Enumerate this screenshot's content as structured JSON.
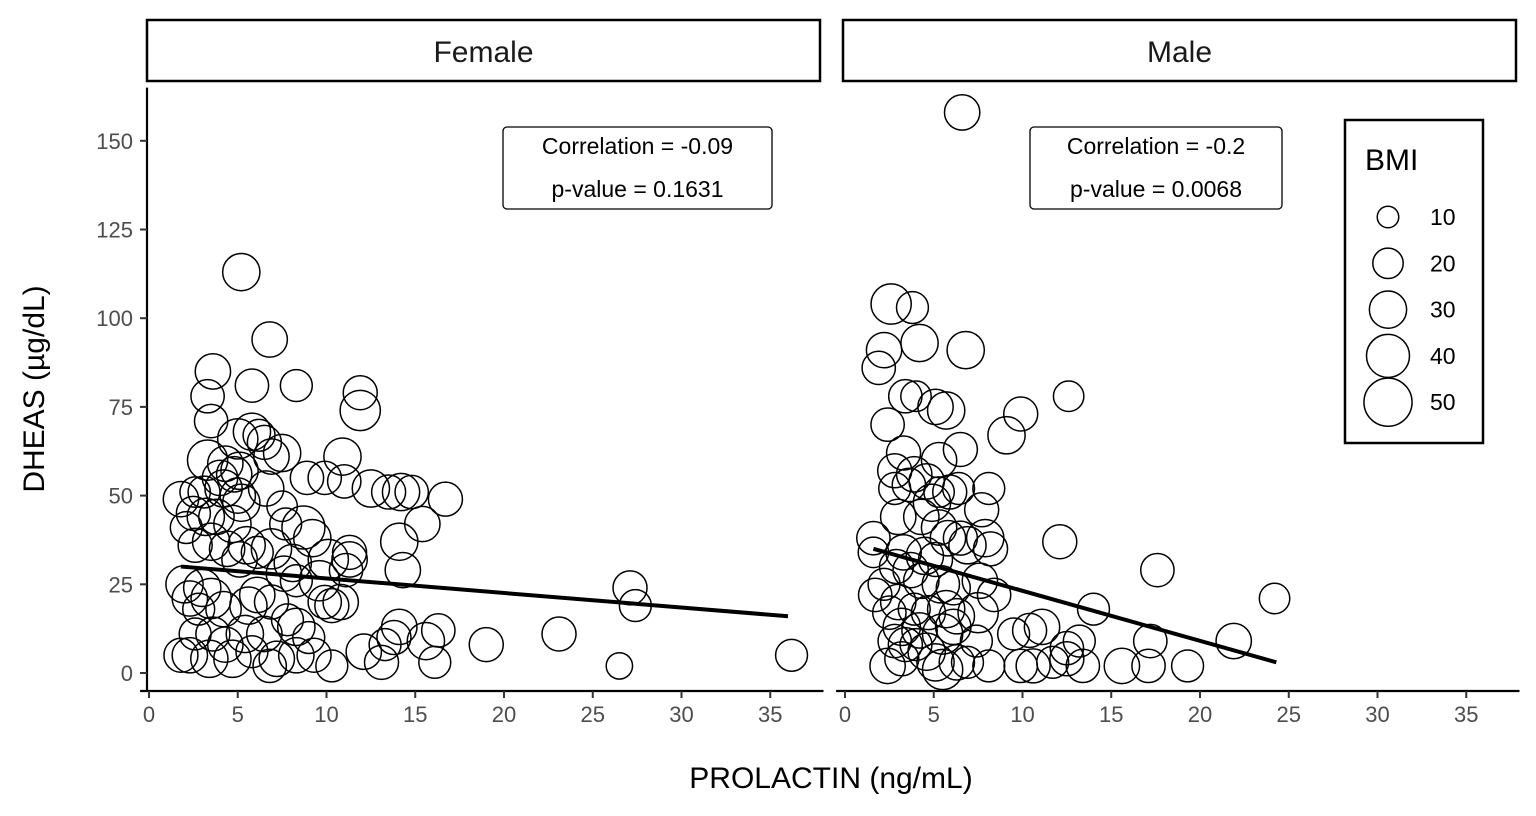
{
  "chart_data": {
    "type": "scatter",
    "xlabel": "PROLACTIN (ng/mL)",
    "ylabel": "DHEAS (µg/dL)",
    "xlim": [
      -0.5,
      38
    ],
    "ylim": [
      -5,
      165
    ],
    "x_ticks": [
      0,
      5,
      10,
      15,
      20,
      25,
      30,
      35
    ],
    "y_ticks": [
      0,
      25,
      50,
      75,
      100,
      125,
      150
    ],
    "grid": false,
    "size_variable": "BMI",
    "legend": {
      "title": "BMI",
      "position": "right",
      "entries": [
        10,
        20,
        30,
        40,
        50
      ]
    },
    "panels": [
      {
        "name": "Female",
        "annotation": [
          "Correlation = -0.09",
          "p-value = 0.1631"
        ],
        "fit_line": [
          [
            1.8,
            30
          ],
          [
            36,
            16
          ]
        ],
        "points": [
          [
            5.2,
            113,
            30
          ],
          [
            6.8,
            94,
            27
          ],
          [
            3.6,
            85,
            27
          ],
          [
            5.8,
            81,
            24
          ],
          [
            8.3,
            81,
            22
          ],
          [
            3.3,
            78,
            24
          ],
          [
            11.9,
            79,
            25
          ],
          [
            11.9,
            74,
            35
          ],
          [
            3.5,
            71,
            24
          ],
          [
            5.8,
            68,
            30
          ],
          [
            6.2,
            67,
            22
          ],
          [
            6.5,
            65,
            25
          ],
          [
            5,
            66,
            35
          ],
          [
            6.9,
            61,
            27
          ],
          [
            7.5,
            62,
            30
          ],
          [
            3.3,
            60,
            35
          ],
          [
            4.3,
            59,
            27
          ],
          [
            4.8,
            56,
            27
          ],
          [
            5.1,
            57,
            30
          ],
          [
            4,
            55,
            27
          ],
          [
            8.9,
            55,
            24
          ],
          [
            9.9,
            55,
            24
          ],
          [
            11,
            54,
            24
          ],
          [
            10.9,
            61,
            30
          ],
          [
            12.5,
            52,
            30
          ],
          [
            13.5,
            51,
            25
          ],
          [
            14.2,
            51,
            30
          ],
          [
            14.8,
            51,
            24
          ],
          [
            16.7,
            49,
            25
          ],
          [
            15.4,
            42,
            27
          ],
          [
            2.6,
            51,
            20
          ],
          [
            3.1,
            51,
            22
          ],
          [
            1.8,
            49,
            27
          ],
          [
            4.2,
            52,
            30
          ],
          [
            5,
            50,
            27
          ],
          [
            6.6,
            52,
            27
          ],
          [
            5.2,
            48,
            30
          ],
          [
            7.5,
            47,
            20
          ],
          [
            3.2,
            44,
            30
          ],
          [
            2.5,
            45,
            25
          ],
          [
            3.8,
            44,
            27
          ],
          [
            2.1,
            41,
            22
          ],
          [
            4.7,
            42,
            30
          ],
          [
            7.7,
            42,
            22
          ],
          [
            8.7,
            41,
            40
          ],
          [
            9.2,
            38,
            30
          ],
          [
            10.1,
            32,
            35
          ],
          [
            11.3,
            34,
            25
          ],
          [
            11.3,
            32,
            27
          ],
          [
            11.1,
            29,
            24
          ],
          [
            14.1,
            37,
            30
          ],
          [
            14.3,
            29,
            27
          ],
          [
            2.6,
            36,
            25
          ],
          [
            3.5,
            37,
            30
          ],
          [
            4.4,
            35,
            27
          ],
          [
            5.5,
            36,
            30
          ],
          [
            6.9,
            35,
            35
          ],
          [
            8.1,
            31,
            30
          ],
          [
            6.1,
            34,
            22
          ],
          [
            5.1,
            32,
            27
          ],
          [
            2,
            25,
            30
          ],
          [
            2.3,
            21,
            27
          ],
          [
            3,
            24,
            30
          ],
          [
            3.5,
            21,
            35
          ],
          [
            2.8,
            18,
            22
          ],
          [
            4.2,
            18,
            27
          ],
          [
            5.6,
            19,
            30
          ],
          [
            6.1,
            22,
            27
          ],
          [
            6.9,
            20,
            25
          ],
          [
            7.6,
            28,
            27
          ],
          [
            8.3,
            26,
            22
          ],
          [
            9.6,
            26,
            35
          ],
          [
            9.9,
            20,
            24
          ],
          [
            10.3,
            19,
            25
          ],
          [
            10.8,
            20,
            27
          ],
          [
            7.8,
            15,
            22
          ],
          [
            8.3,
            13,
            30
          ],
          [
            9,
            10,
            22
          ],
          [
            6.5,
            11,
            27
          ],
          [
            5.4,
            11,
            30
          ],
          [
            4.3,
            8,
            27
          ],
          [
            3.6,
            11,
            25
          ],
          [
            2.6,
            11,
            22
          ],
          [
            2.3,
            5,
            27
          ],
          [
            1.8,
            5,
            25
          ],
          [
            3.4,
            4,
            30
          ],
          [
            4.7,
            4,
            30
          ],
          [
            6.8,
            2,
            24
          ],
          [
            5.8,
            6,
            22
          ],
          [
            7.2,
            4,
            27
          ],
          [
            8.3,
            5,
            27
          ],
          [
            9.3,
            5,
            25
          ],
          [
            10.3,
            2,
            22
          ],
          [
            12.1,
            6,
            27
          ],
          [
            13.1,
            3,
            25
          ],
          [
            13.3,
            8,
            22
          ],
          [
            13.8,
            10,
            25
          ],
          [
            14.1,
            13,
            27
          ],
          [
            15.6,
            9,
            30
          ],
          [
            16.1,
            3,
            22
          ],
          [
            16.3,
            12,
            24
          ],
          [
            19,
            8,
            25
          ],
          [
            23.1,
            11,
            25
          ],
          [
            26.5,
            2,
            15
          ],
          [
            27.1,
            24,
            25
          ],
          [
            27.4,
            19,
            22
          ],
          [
            36.2,
            5,
            22
          ]
        ]
      },
      {
        "name": "Male",
        "annotation": [
          "Correlation = -0.2",
          "p-value = 0.0068"
        ],
        "fit_line": [
          [
            1.6,
            35
          ],
          [
            24.3,
            3
          ]
        ],
        "points": [
          [
            6.6,
            158,
            27
          ],
          [
            2.6,
            104,
            35
          ],
          [
            3.8,
            103,
            22
          ],
          [
            2.2,
            91,
            27
          ],
          [
            4.2,
            93,
            30
          ],
          [
            6.8,
            91,
            30
          ],
          [
            1.9,
            86,
            24
          ],
          [
            3.4,
            78,
            24
          ],
          [
            4,
            78,
            20
          ],
          [
            5.1,
            75,
            27
          ],
          [
            5.7,
            74,
            30
          ],
          [
            9.9,
            73,
            25
          ],
          [
            12.6,
            78,
            20
          ],
          [
            2.4,
            70,
            24
          ],
          [
            9.1,
            67,
            30
          ],
          [
            6.5,
            63,
            25
          ],
          [
            3.3,
            62,
            25
          ],
          [
            2.8,
            57,
            25
          ],
          [
            3.9,
            56,
            27
          ],
          [
            4.6,
            54,
            27
          ],
          [
            5.3,
            60,
            27
          ],
          [
            3.6,
            53,
            24
          ],
          [
            2.8,
            52,
            22
          ],
          [
            5.3,
            51,
            20
          ],
          [
            5.9,
            51,
            25
          ],
          [
            6.4,
            52,
            22
          ],
          [
            8.1,
            52,
            22
          ],
          [
            7.7,
            46,
            25
          ],
          [
            4.9,
            48,
            30
          ],
          [
            4.3,
            44,
            27
          ],
          [
            3,
            44,
            27
          ],
          [
            1.6,
            38,
            24
          ],
          [
            5.3,
            41,
            27
          ],
          [
            5.8,
            38,
            27
          ],
          [
            6.5,
            38,
            25
          ],
          [
            7.9,
            38,
            30
          ],
          [
            6.9,
            36,
            30
          ],
          [
            8.2,
            35,
            25
          ],
          [
            1.6,
            34,
            20
          ],
          [
            3.3,
            34,
            27
          ],
          [
            4.5,
            33,
            30
          ],
          [
            5.1,
            32,
            25
          ],
          [
            12.1,
            37,
            25
          ],
          [
            2.9,
            30,
            25
          ],
          [
            3.7,
            29,
            27
          ],
          [
            4.3,
            26,
            27
          ],
          [
            5.4,
            25,
            30
          ],
          [
            6.1,
            24,
            25
          ],
          [
            7.6,
            26,
            27
          ],
          [
            8.4,
            22,
            24
          ],
          [
            2.2,
            25,
            22
          ],
          [
            1.7,
            22,
            24
          ],
          [
            3,
            20,
            27
          ],
          [
            3.9,
            18,
            22
          ],
          [
            4.7,
            17,
            25
          ],
          [
            5.7,
            18,
            30
          ],
          [
            6.3,
            16,
            27
          ],
          [
            7.5,
            17,
            35
          ],
          [
            2.5,
            17,
            24
          ],
          [
            3.2,
            13,
            30
          ],
          [
            4.2,
            12,
            27
          ],
          [
            5.5,
            11,
            35
          ],
          [
            6.1,
            13,
            27
          ],
          [
            7.4,
            9,
            22
          ],
          [
            2.8,
            9,
            24
          ],
          [
            3.4,
            8,
            25
          ],
          [
            4,
            8,
            22
          ],
          [
            4.6,
            6,
            30
          ],
          [
            3.2,
            4,
            25
          ],
          [
            2.4,
            2,
            27
          ],
          [
            5.1,
            3,
            30
          ],
          [
            5.5,
            1,
            35
          ],
          [
            6.3,
            3,
            27
          ],
          [
            6.9,
            3,
            22
          ],
          [
            8.1,
            2,
            22
          ],
          [
            9.5,
            11,
            22
          ],
          [
            9.9,
            2,
            24
          ],
          [
            10.4,
            12,
            25
          ],
          [
            10.6,
            2,
            25
          ],
          [
            11.1,
            13,
            27
          ],
          [
            11.7,
            3,
            22
          ],
          [
            12.5,
            7,
            24
          ],
          [
            12.5,
            4,
            25
          ],
          [
            13.2,
            9,
            22
          ],
          [
            13.4,
            2,
            24
          ],
          [
            14,
            18,
            22
          ],
          [
            15.6,
            2,
            27
          ],
          [
            17.1,
            2,
            24
          ],
          [
            17.2,
            9,
            24
          ],
          [
            17.6,
            29,
            24
          ],
          [
            19.3,
            2,
            22
          ],
          [
            21.9,
            9,
            27
          ],
          [
            24.2,
            21,
            20
          ]
        ]
      }
    ]
  }
}
